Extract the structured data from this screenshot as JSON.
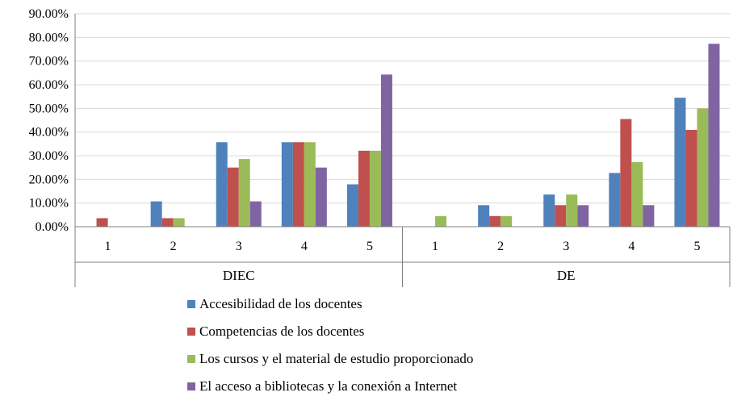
{
  "chart_data": {
    "type": "bar",
    "y_axis": {
      "min": 0,
      "max": 90,
      "step": 10,
      "tick_labels": [
        "0.00%",
        "10.00%",
        "20.00%",
        "30.00%",
        "40.00%",
        "50.00%",
        "60.00%",
        "70.00%",
        "80.00%",
        "90.00%"
      ]
    },
    "grid": true,
    "legend_position": "bottom",
    "groups": [
      {
        "label": "DIEC",
        "categories": [
          "1",
          "2",
          "3",
          "4",
          "5"
        ],
        "series_values": [
          [
            0,
            10.7,
            35.7,
            35.7,
            17.9
          ],
          [
            3.6,
            3.6,
            25.0,
            35.7,
            32.1
          ],
          [
            0,
            3.6,
            28.6,
            35.7,
            32.1
          ],
          [
            0,
            0,
            10.7,
            25.0,
            64.3
          ]
        ]
      },
      {
        "label": "DE",
        "categories": [
          "1",
          "2",
          "3",
          "4",
          "5"
        ],
        "series_values": [
          [
            0,
            9.1,
            13.6,
            22.7,
            54.5
          ],
          [
            0,
            4.5,
            9.1,
            45.5,
            40.9
          ],
          [
            4.5,
            4.5,
            13.6,
            27.3,
            50.0
          ],
          [
            0,
            0,
            9.1,
            9.1,
            77.3
          ]
        ]
      }
    ],
    "series": [
      {
        "name": "Accesibilidad de los docentes",
        "color": "#4F81BD"
      },
      {
        "name": "Competencias de los docentes",
        "color": "#C0504D"
      },
      {
        "name": "Los cursos y el material de estudio proporcionado",
        "color": "#9BBB59"
      },
      {
        "name": "El acceso a bibliotecas y la conexión a Internet",
        "color": "#8064A2"
      }
    ]
  }
}
